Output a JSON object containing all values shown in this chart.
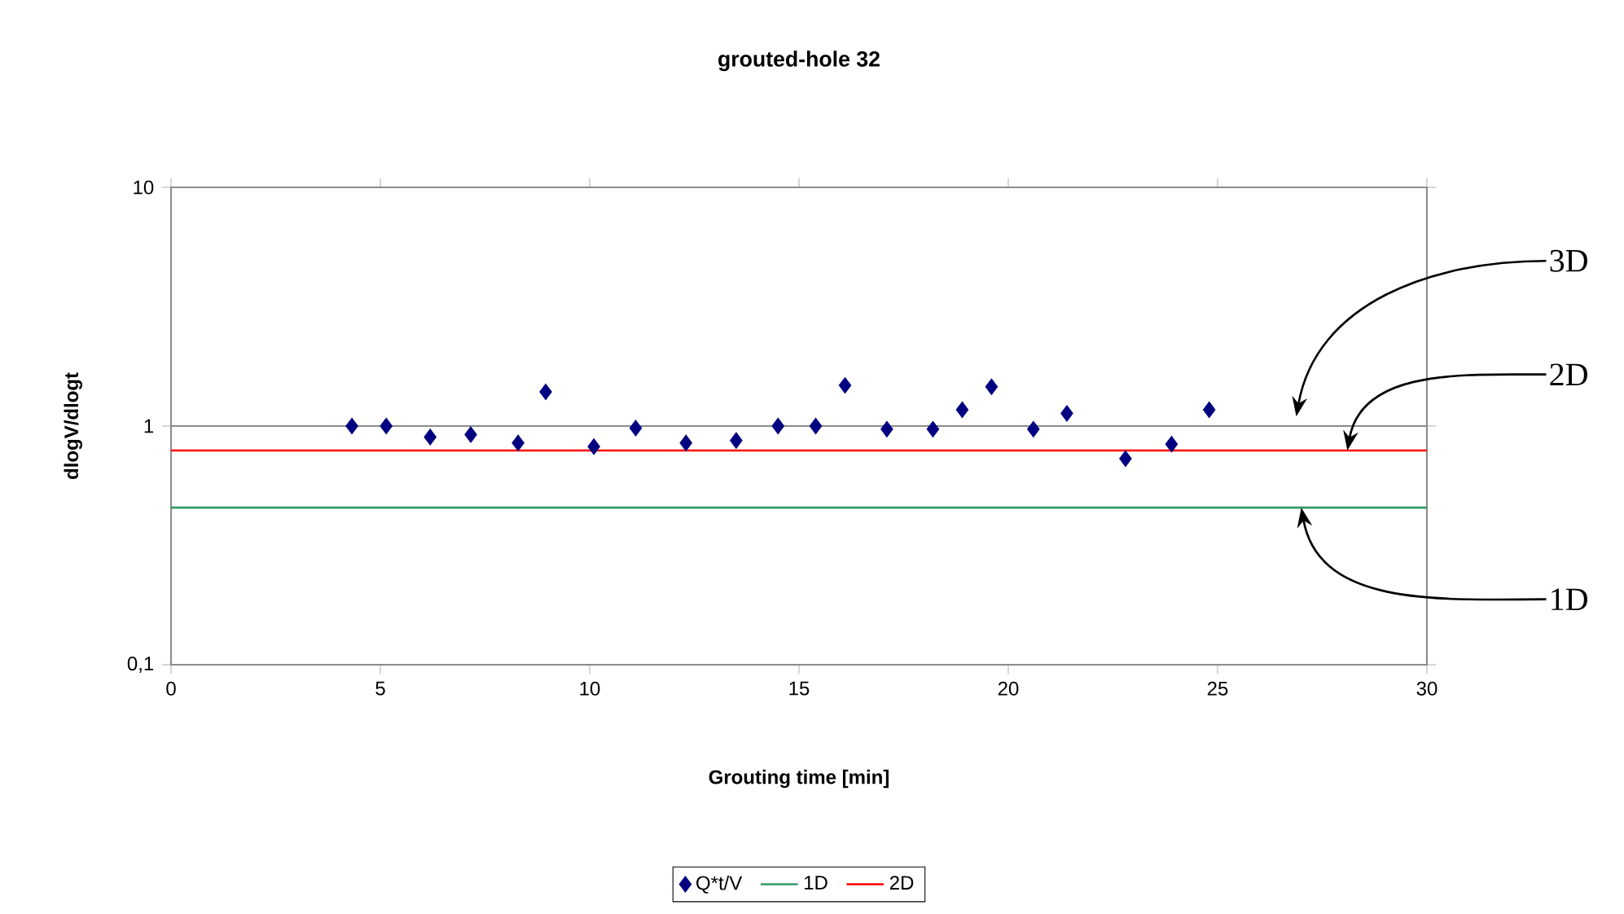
{
  "chart_data": {
    "type": "scatter",
    "title": "grouted-hole 32",
    "xlabel": "Grouting time [min]",
    "ylabel": "dlogV/dlogt",
    "series": [
      {
        "name": "Q*t/V",
        "color": "#000080",
        "marker": "diamond",
        "x": [
          4.32,
          5.14,
          6.19,
          7.16,
          8.29,
          8.95,
          10.1,
          11.1,
          12.3,
          13.5,
          14.5,
          15.4,
          16.1,
          17.1,
          18.2,
          18.9,
          19.6,
          20.6,
          21.4,
          22.8,
          23.9,
          24.8
        ],
        "values": [
          1.0,
          1.0,
          0.9,
          0.92,
          0.85,
          1.39,
          0.82,
          0.98,
          0.85,
          0.87,
          1.0,
          1.0,
          1.48,
          0.97,
          0.97,
          1.17,
          1.46,
          0.97,
          1.13,
          0.73,
          0.84,
          1.17
        ]
      },
      {
        "name": "1D",
        "type": "line",
        "color": "#339966",
        "x": [
          0,
          30
        ],
        "values": [
          0.455,
          0.455
        ]
      },
      {
        "name": "2D",
        "type": "line",
        "color": "#ff0000",
        "x": [
          0,
          30
        ],
        "values": [
          0.79,
          0.79
        ]
      }
    ],
    "annotations": [
      "3D",
      {
        "text": "2D",
        "x": 28.1,
        "y": 0.79
      },
      {
        "text": "1D",
        "x": 27.0,
        "y": 0.455
      }
    ],
    "xlim": [
      0,
      30
    ],
    "ylim": [
      0.1,
      10
    ],
    "log": "y",
    "xticks": [
      0,
      5,
      10,
      15,
      20,
      25,
      30
    ],
    "yticks": [
      {
        "value": 0.1,
        "label": "0,1"
      },
      1,
      10
    ],
    "grid": "y",
    "legend": "bottom"
  }
}
